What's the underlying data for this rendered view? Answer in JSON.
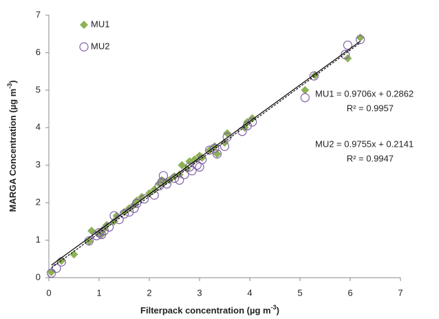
{
  "chart_data": {
    "type": "scatter",
    "xlabel": {
      "text": "Filterpack concentration (µg m",
      "sup": "-3",
      "end": ")"
    },
    "ylabel": {
      "text": "MARGA Concentration (µg m",
      "sup": "-3",
      "end": ")"
    },
    "xlim": [
      0,
      7
    ],
    "ylim": [
      0,
      7
    ],
    "xticks": [
      0,
      1,
      2,
      3,
      4,
      5,
      6,
      7
    ],
    "yticks": [
      0,
      1,
      2,
      3,
      4,
      5,
      6,
      7
    ],
    "grid": false,
    "legend": "upper left",
    "series": [
      {
        "name": "MU1",
        "color": "#8db255",
        "marker": "diamond",
        "x": [
          0.05,
          0.25,
          0.5,
          0.8,
          0.85,
          1.0,
          1.05,
          1.1,
          1.15,
          1.3,
          1.35,
          1.5,
          1.6,
          1.7,
          1.75,
          1.85,
          2.0,
          2.1,
          2.2,
          2.25,
          2.3,
          2.4,
          2.5,
          2.6,
          2.65,
          2.75,
          2.8,
          2.9,
          3.0,
          3.05,
          3.2,
          3.3,
          3.35,
          3.5,
          3.55,
          3.9,
          3.95,
          4.05,
          5.1,
          5.3,
          5.95,
          6.2
        ],
        "values": [
          0.15,
          0.45,
          0.62,
          0.97,
          1.25,
          1.2,
          1.15,
          1.3,
          1.4,
          1.5,
          1.65,
          1.75,
          1.85,
          1.95,
          2.05,
          2.15,
          2.25,
          2.35,
          2.5,
          2.6,
          2.55,
          2.6,
          2.7,
          2.75,
          3.0,
          2.9,
          3.1,
          3.15,
          3.25,
          3.2,
          3.4,
          3.5,
          3.3,
          3.6,
          3.85,
          4.0,
          4.15,
          4.25,
          5.0,
          5.4,
          5.85,
          6.4
        ],
        "trendline": {
          "slope": 0.9706,
          "intercept": 0.2862,
          "style": "solid"
        },
        "equation": "MU1 = 0.9706x + 0.2862",
        "r2": "R² = 0.9957"
      },
      {
        "name": "MU2",
        "color": "#7f5fa5",
        "marker": "circle",
        "x": [
          0.05,
          0.15,
          0.25,
          0.8,
          0.95,
          1.0,
          1.05,
          1.1,
          1.2,
          1.3,
          1.4,
          1.5,
          1.6,
          1.7,
          1.75,
          1.9,
          2.1,
          2.2,
          2.25,
          2.28,
          2.35,
          2.5,
          2.6,
          2.7,
          2.8,
          2.85,
          2.95,
          3.0,
          3.05,
          3.2,
          3.3,
          3.35,
          3.5,
          3.55,
          3.85,
          3.95,
          4.05,
          5.1,
          5.28,
          5.9,
          5.95,
          6.2
        ],
        "values": [
          0.12,
          0.25,
          0.42,
          0.98,
          1.12,
          1.2,
          1.15,
          1.25,
          1.35,
          1.65,
          1.55,
          1.7,
          1.75,
          1.85,
          1.98,
          2.1,
          2.2,
          2.45,
          2.55,
          2.72,
          2.5,
          2.65,
          2.6,
          2.75,
          2.95,
          2.85,
          3.0,
          2.95,
          3.15,
          3.4,
          3.45,
          3.3,
          3.5,
          3.75,
          3.9,
          4.05,
          4.15,
          4.8,
          5.38,
          5.95,
          6.2,
          6.35
        ],
        "trendline": {
          "slope": 0.9755,
          "intercept": 0.2141,
          "style": "dashed"
        },
        "equation": "MU2 = 0.9755x + 0.2141",
        "r2": "R² = 0.9947"
      }
    ]
  }
}
